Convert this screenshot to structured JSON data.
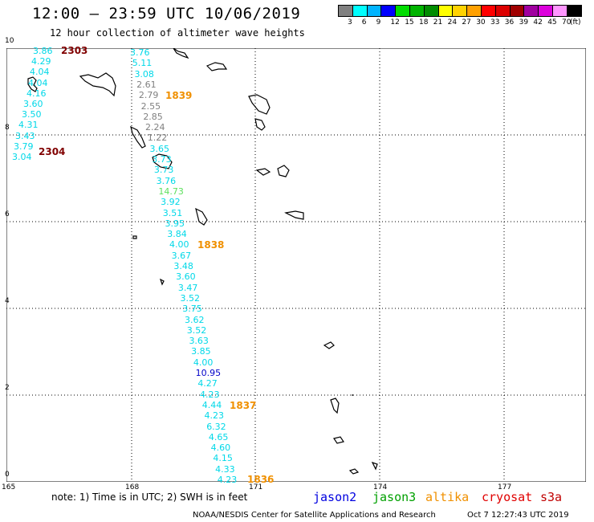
{
  "header": {
    "title": "12:00 — 23:59 UTC 10/06/2019",
    "subtitle": "12 hour collection of altimeter wave heights"
  },
  "legend": {
    "unit": "(ft)",
    "labels": [
      "3",
      "6",
      "9",
      "12",
      "15",
      "18",
      "21",
      "24",
      "27",
      "30",
      "33",
      "36",
      "39",
      "42",
      "45",
      "70"
    ],
    "colors": [
      "#808080",
      "#00ffff",
      "#00b4ff",
      "#0000ff",
      "#00dc00",
      "#00b400",
      "#008c00",
      "#ffff00",
      "#ffd200",
      "#ffa000",
      "#ff0000",
      "#dc0000",
      "#a00000",
      "#a000a0",
      "#dc00dc",
      "#ff96ff",
      "#000000"
    ]
  },
  "axes": {
    "y_ticks": [
      "10",
      "8",
      "6",
      "4",
      "2",
      "0"
    ],
    "x_ticks": [
      "165",
      "168",
      "171",
      "174",
      "177"
    ]
  },
  "colors": {
    "cyan": "#00d8e8",
    "gray": "#808080",
    "green": "#5ee05e",
    "blue": "#0000c8",
    "orange": "#f09000",
    "darkred": "#800000"
  },
  "track_left": {
    "values": [
      "3.86",
      "4.29",
      "4.04",
      "4.04",
      "4.16",
      "3.60",
      "3.50",
      "4.31",
      "3.43",
      "3.79",
      "3.04"
    ],
    "times": [
      "2303",
      "2304"
    ]
  },
  "track_main": {
    "values": [
      "3.76",
      "5.11",
      "3.08",
      "2.61",
      "2.79",
      "2.55",
      "2.85",
      "2.24",
      "1.22",
      "3.65",
      "3.73",
      "3.73",
      "3.76",
      "14.73",
      "3.92",
      "3.51",
      "3.95",
      "3.84",
      "4.00",
      "3.67",
      "3.48",
      "3.60",
      "3.47",
      "3.52",
      "3.75",
      "3.62",
      "3.52",
      "3.63",
      "3.85",
      "4.00",
      "10.95",
      "4.27",
      "4.23",
      "4.44",
      "4.23",
      "6.32",
      "4.65",
      "4.60",
      "4.15",
      "4.33",
      "4.23"
    ],
    "times": [
      "1839",
      "1838",
      "1837",
      "1836"
    ]
  },
  "note": "note:  1) Time is in UTC;  2) SWH is in feet",
  "satellites": [
    "jason2",
    "jason3",
    "altika",
    "cryosat",
    "s3a"
  ],
  "satellite_colors": [
    "#0000e0",
    "#00a000",
    "#f09000",
    "#e00000",
    "#c00000"
  ],
  "credit": "NOAA/NESDIS Center for Satellite Applications and Research",
  "credit_date": "Oct  7 12:27:43 UTC 2019"
}
